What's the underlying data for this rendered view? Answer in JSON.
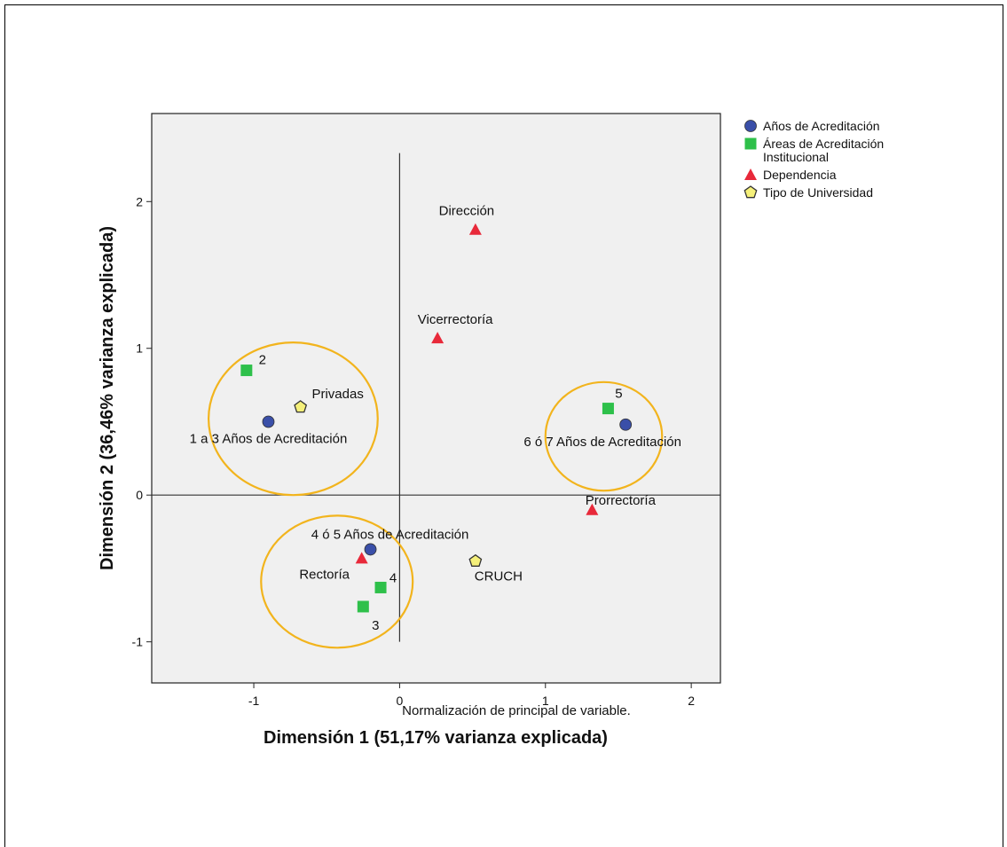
{
  "chart_data": {
    "type": "scatter",
    "xlabel": "Dimensión 1 (51,17% varianza explicada)",
    "ylabel": "Dimensión 2 (36,46% varianza explicada)",
    "xlim": [
      -1.7,
      2.2
    ],
    "ylim": [
      -1.28,
      2.6
    ],
    "xticks": [
      "-1",
      "0",
      "1",
      "2"
    ],
    "yticks": [
      "-1",
      "0",
      "1",
      "2"
    ],
    "grid": false,
    "legend_position": "right",
    "footnote": "Normalización de principal de variable.",
    "series": [
      {
        "name": "Años de Acreditación",
        "marker": "circle",
        "color": "#3a4fa8",
        "points": [
          {
            "label": "1 a 3 Años de Acreditación",
            "x": -0.9,
            "y": 0.5
          },
          {
            "label": "6 ó 7 Años de Acreditación",
            "x": 1.55,
            "y": 0.48
          },
          {
            "label": "4 ó 5 Años de Acreditación",
            "x": -0.2,
            "y": -0.37
          }
        ]
      },
      {
        "name": "Áreas de Acreditación Institucional",
        "name_lines": [
          "Áreas de Acreditación",
          "Institucional"
        ],
        "marker": "square",
        "color": "#2ec04a",
        "points": [
          {
            "label": "2",
            "x": -1.05,
            "y": 0.85
          },
          {
            "label": "5",
            "x": 1.43,
            "y": 0.59
          },
          {
            "label": "4",
            "x": -0.13,
            "y": -0.63
          },
          {
            "label": "3",
            "x": -0.25,
            "y": -0.76
          }
        ]
      },
      {
        "name": "Dependencia",
        "marker": "triangle",
        "color": "#e8293a",
        "points": [
          {
            "label": "Dirección",
            "x": 0.52,
            "y": 1.81
          },
          {
            "label": "Vicerrectoría",
            "x": 0.26,
            "y": 1.07
          },
          {
            "label": "Prorrectoría",
            "x": 1.32,
            "y": -0.1
          },
          {
            "label": "Rectoría",
            "x": -0.26,
            "y": -0.43
          }
        ]
      },
      {
        "name": "Tipo de Universidad",
        "marker": "pentagon",
        "color": "#f5f07a",
        "points": [
          {
            "label": "Privadas",
            "x": -0.68,
            "y": 0.6
          },
          {
            "label": "CRUCH",
            "x": 0.52,
            "y": -0.45
          }
        ]
      }
    ],
    "annotation_ellipses": [
      {
        "cx": -0.73,
        "cy": 0.52,
        "rx": 0.58,
        "ry": 0.52
      },
      {
        "cx": 1.4,
        "cy": 0.4,
        "rx": 0.4,
        "ry": 0.37
      },
      {
        "cx": -0.43,
        "cy": -0.59,
        "rx": 0.52,
        "ry": 0.45
      }
    ],
    "annotation_color": "#f2b41d"
  }
}
